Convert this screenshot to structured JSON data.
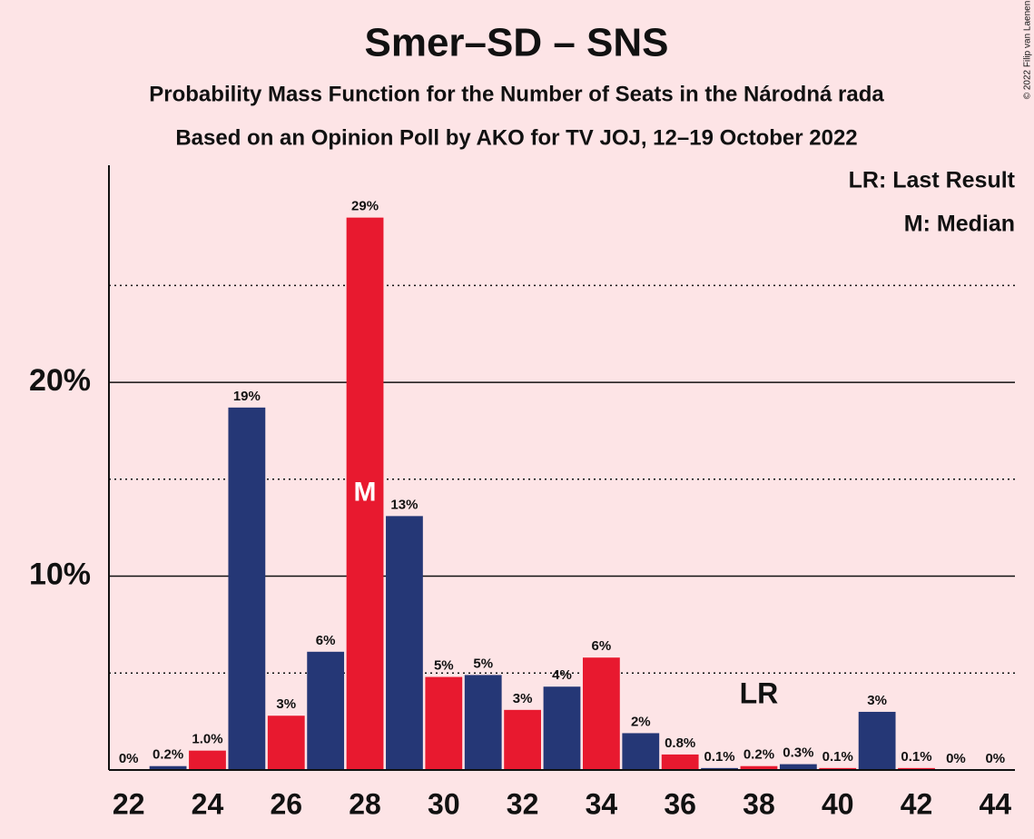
{
  "chart_data": {
    "type": "bar",
    "title": "Smer–SD – SNS",
    "subtitle": "Probability Mass Function for the Number of Seats in the Národná rada",
    "subtitle2": "Based on an Opinion Poll by AKO for TV JOJ, 12–19 October 2022",
    "copyright": "© 2022 Filip van Laenen",
    "legend": [
      "LR: Last Result",
      "M: Median"
    ],
    "x": [
      22,
      23,
      24,
      25,
      26,
      27,
      28,
      29,
      30,
      31,
      32,
      33,
      34,
      35,
      36,
      37,
      38,
      39,
      40,
      41,
      42,
      43,
      44
    ],
    "values": [
      0,
      0.2,
      1.0,
      18.7,
      2.8,
      6.1,
      28.5,
      13.1,
      4.8,
      4.9,
      3.1,
      4.3,
      5.8,
      1.9,
      0.8,
      0.1,
      0.2,
      0.3,
      0.1,
      3.0,
      0.1,
      0,
      0
    ],
    "value_labels": [
      "0%",
      "0.2%",
      "1.0%",
      "19%",
      "3%",
      "6%",
      "29%",
      "13%",
      "5%",
      "5%",
      "3%",
      "4%",
      "6%",
      "2%",
      "0.8%",
      "0.1%",
      "0.2%",
      "0.3%",
      "0.1%",
      "3%",
      "0.1%",
      "0%",
      "0%"
    ],
    "colors": [
      "#e8192f",
      "#253776",
      "#e8192f",
      "#253776",
      "#e8192f",
      "#253776",
      "#e8192f",
      "#253776",
      "#e8192f",
      "#253776",
      "#e8192f",
      "#253776",
      "#e8192f",
      "#253776",
      "#e8192f",
      "#253776",
      "#e8192f",
      "#253776",
      "#e8192f",
      "#253776",
      "#e8192f",
      "#253776",
      "#e8192f"
    ],
    "xlim": [
      21.5,
      44.5
    ],
    "xticks": [
      22,
      24,
      26,
      28,
      30,
      32,
      34,
      36,
      38,
      40,
      42,
      44
    ],
    "ylim": [
      0,
      31.2
    ],
    "yticks": [
      {
        "value": 10,
        "label": "10%"
      },
      {
        "value": 20,
        "label": "20%"
      }
    ],
    "minor_yticks": [
      5,
      15,
      25
    ],
    "median": {
      "x": 28,
      "label": "M"
    },
    "last_result": {
      "x": 38,
      "label": "LR"
    }
  }
}
